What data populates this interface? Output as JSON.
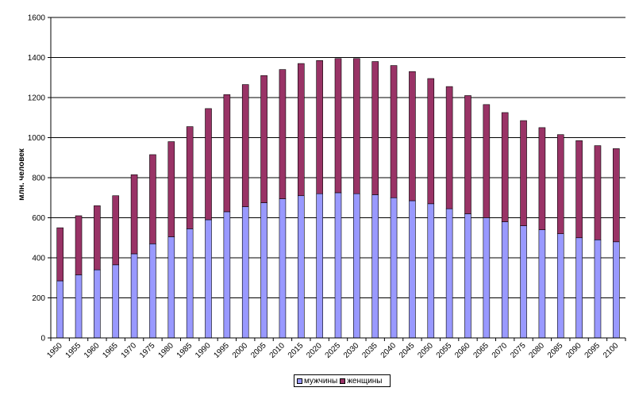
{
  "colors": {
    "male": "#9999ff",
    "female": "#993366",
    "background": "#ffffff",
    "grid": "#000000"
  },
  "legend": {
    "male_label": "мужчины",
    "female_label": "женщины"
  },
  "chart_data": {
    "type": "bar",
    "stacked": true,
    "ylabel": "млн. человек",
    "xlabel": "",
    "ylim": [
      0,
      1600
    ],
    "yticks": [
      0,
      200,
      400,
      600,
      800,
      1000,
      1200,
      1400,
      1600
    ],
    "grid": true,
    "legend_position": "bottom",
    "categories": [
      "1950",
      "1955",
      "1960",
      "1965",
      "1970",
      "1975",
      "1980",
      "1985",
      "1990",
      "1995",
      "2000",
      "2005",
      "2010",
      "2015",
      "2020",
      "2025",
      "2030",
      "2035",
      "2040",
      "2045",
      "2050",
      "2055",
      "2060",
      "2065",
      "2070",
      "2075",
      "2080",
      "2085",
      "2090",
      "2095",
      "2100"
    ],
    "series": [
      {
        "name": "мужчины",
        "values": [
          285,
          315,
          340,
          365,
          420,
          470,
          505,
          545,
          590,
          630,
          655,
          675,
          695,
          710,
          720,
          725,
          720,
          715,
          700,
          685,
          670,
          645,
          620,
          600,
          580,
          560,
          540,
          520,
          500,
          490,
          480
        ]
      },
      {
        "name": "женщины",
        "values": [
          265,
          295,
          320,
          345,
          395,
          445,
          475,
          510,
          555,
          585,
          610,
          635,
          645,
          660,
          665,
          670,
          675,
          665,
          660,
          645,
          625,
          610,
          590,
          565,
          545,
          525,
          510,
          495,
          485,
          470,
          465
        ]
      }
    ]
  }
}
